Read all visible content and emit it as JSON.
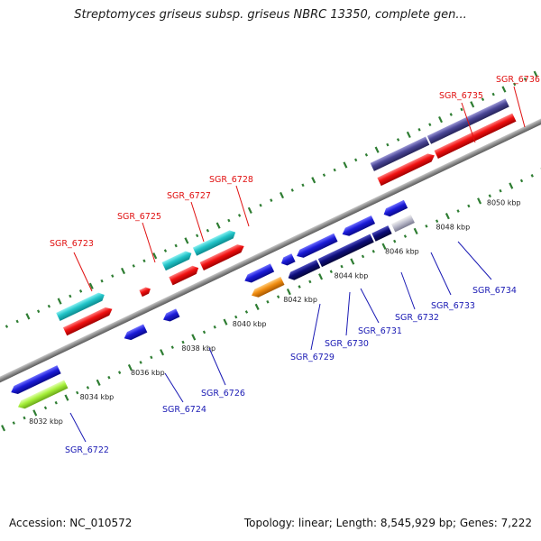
{
  "title": "Streptomyces griseus subsp. griseus NBRC 13350, complete gen...",
  "footer": {
    "accession": "Accession: NC_010572",
    "topology": "Topology: linear; Length: 8,545,929 bp; Genes: 7,222"
  },
  "colors": {
    "forward_label": "#e01010",
    "reverse_label": "#1a1ab4",
    "backbone": "#8c8c8c",
    "ticks": "#2e7d32",
    "cyan_gene": "#22c4c8",
    "red_gene": "#f01010",
    "blue_gene": "#1b1bd8",
    "navy_gene": "#0c0c7a",
    "violet_gene": "#4a4696",
    "orange_gene": "#f08c10",
    "lime_gene": "#a6f03a"
  },
  "scale": {
    "unit": "kbp",
    "ticks": [
      {
        "label": "8032 kbp"
      },
      {
        "label": "8034 kbp"
      },
      {
        "label": "8036 kbp"
      },
      {
        "label": "8038 kbp"
      },
      {
        "label": "8040 kbp"
      },
      {
        "label": "8042 kbp"
      },
      {
        "label": "8044 kbp"
      },
      {
        "label": "8046 kbp"
      },
      {
        "label": "8048 kbp"
      },
      {
        "label": "8050 kbp"
      }
    ]
  },
  "forward_labels": [
    {
      "name": "SGR_6723"
    },
    {
      "name": "SGR_6725"
    },
    {
      "name": "SGR_6727"
    },
    {
      "name": "SGR_6728"
    },
    {
      "name": "SGR_6735"
    },
    {
      "name": "SGR_6736"
    }
  ],
  "reverse_labels": [
    {
      "name": "SGR_6722"
    },
    {
      "name": "SGR_6724"
    },
    {
      "name": "SGR_6726"
    },
    {
      "name": "SGR_6729"
    },
    {
      "name": "SGR_6730"
    },
    {
      "name": "SGR_6731"
    },
    {
      "name": "SGR_6732"
    },
    {
      "name": "SGR_6733"
    },
    {
      "name": "SGR_6734"
    }
  ]
}
